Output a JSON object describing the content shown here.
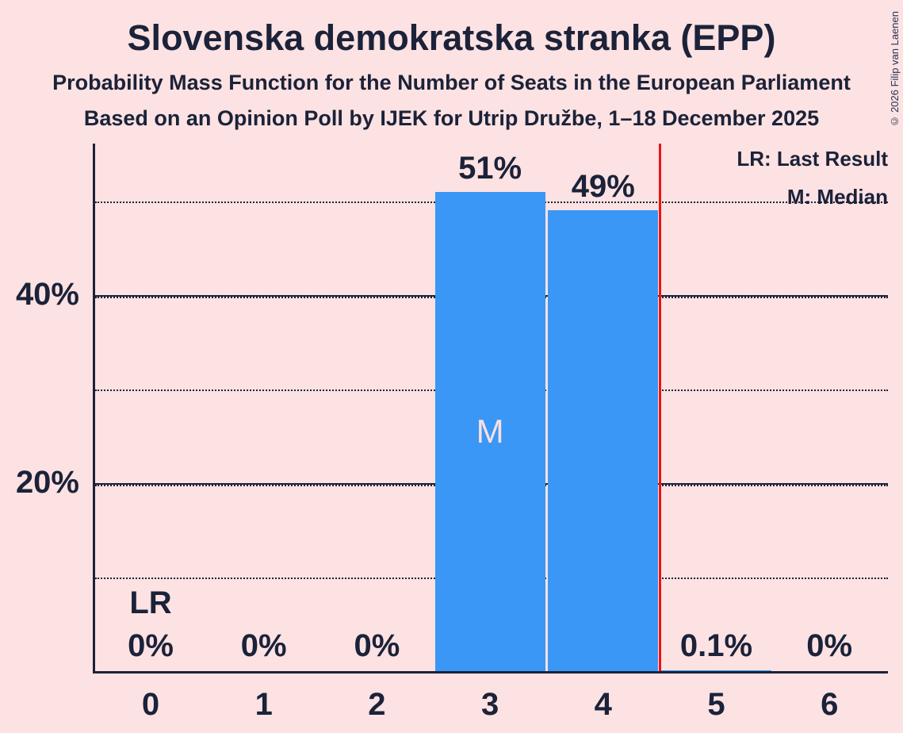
{
  "meta": {
    "copyright": "© 2026 Filip van Laenen"
  },
  "header": {
    "title": "Slovenska demokratska stranka (EPP)",
    "subtitle1": "Probability Mass Function for the Number of Seats in the European Parliament",
    "subtitle2": "Based on an Opinion Poll by IJEK for Utrip Družbe, 1–18 December 2025"
  },
  "legend": {
    "lr": "LR: Last Result",
    "m": "M: Median"
  },
  "colors": {
    "background": "#fce2e2",
    "ink": "#1b2239",
    "bar": "#3a97f5",
    "red_line": "#f21111",
    "median_text": "#f9dfe1"
  },
  "chart_data": {
    "type": "bar",
    "title": "Slovenska demokratska stranka (EPP)",
    "subtitle": "Probability Mass Function for the Number of Seats in the European Parliament",
    "source_line": "Based on an Opinion Poll by IJEK for Utrip Družbe, 1–18 December 2025",
    "categories": [
      "0",
      "1",
      "2",
      "3",
      "4",
      "5",
      "6"
    ],
    "values": [
      0,
      0,
      0,
      51,
      49,
      0.1,
      0
    ],
    "bar_labels": [
      "0%",
      "0%",
      "0%",
      "51%",
      "49%",
      "0.1%",
      "0%"
    ],
    "xlabel": "",
    "ylabel": "",
    "ylim": [
      0,
      56
    ],
    "yticks_labeled": [
      {
        "value": 20,
        "label": "20%"
      },
      {
        "value": 40,
        "label": "40%"
      }
    ],
    "gridlines_solid": [
      20,
      40
    ],
    "gridlines_dotted": [
      10,
      20,
      30,
      40,
      50
    ],
    "grid": "horizontal only",
    "legend_position": "top-right",
    "median": {
      "seat_index": 3,
      "marker": "M"
    },
    "last_result": {
      "seat_index": 0,
      "marker": "LR"
    },
    "vline_seats": 4.5
  }
}
